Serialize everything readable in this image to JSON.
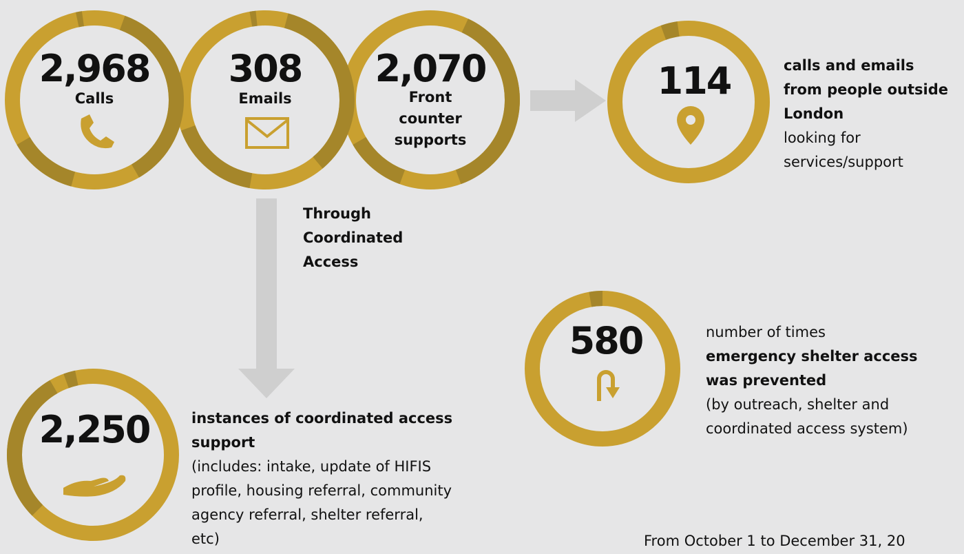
{
  "channels": [
    {
      "value": "2,968",
      "label": "Calls"
    },
    {
      "value": "308",
      "label": "Emails"
    },
    {
      "value": "2,070",
      "label": "Front counter supports"
    }
  ],
  "outside_london": {
    "value": "114",
    "highlight": "calls and emails from people outside London",
    "detail": "looking for services/support"
  },
  "flow_label": "Through Coordinated Access",
  "coordinated_access": {
    "value": "2,250",
    "highlight": "instances of coordinated access support",
    "detail": "(includes: intake, update of HIFIS profile, housing referral, community agency referral, shelter referral, etc)"
  },
  "diversion": {
    "value": "580",
    "intro": "number of times",
    "highlight": "emergency shelter access was prevented",
    "detail": "(by outreach, shelter and coordinated access system)"
  },
  "period": "From October 1 to December 31, 20"
}
